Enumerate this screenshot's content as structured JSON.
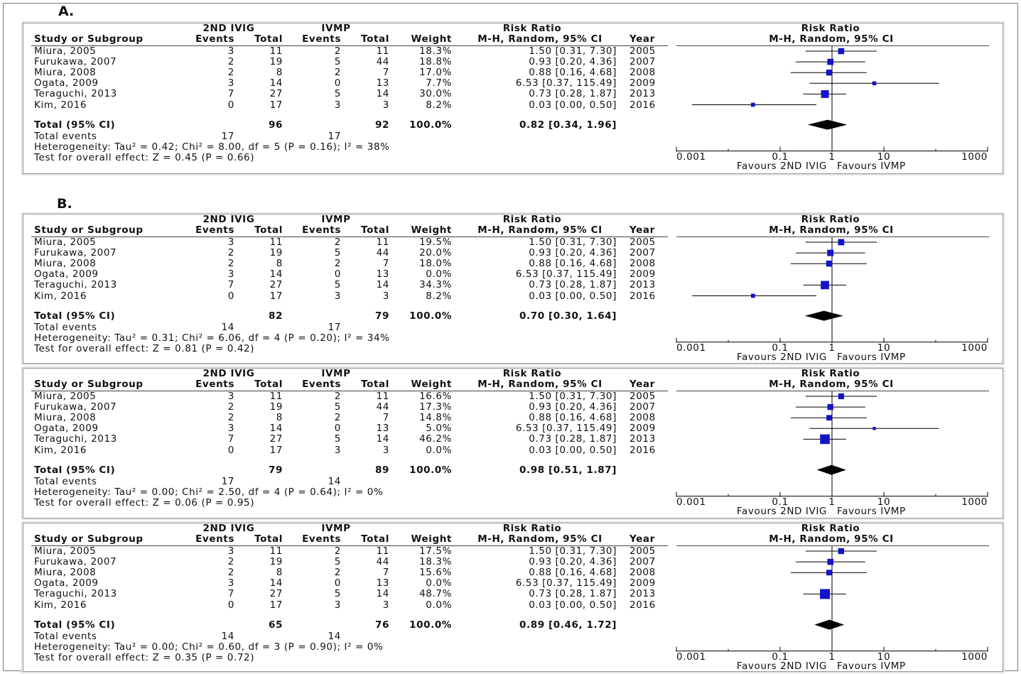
{
  "panel_labels": [
    "A.",
    "B."
  ],
  "header": {
    "group1": "2ND IVIG",
    "group2": "IVMP",
    "rr_title": "Risk Ratio",
    "rr_method": "M-H, Random, 95% CI",
    "col_study": "Study or Subgroup",
    "col_events1": "Events",
    "col_total1": "Total",
    "col_events2": "Events",
    "col_total2": "Total",
    "col_weight": "Weight",
    "col_year": "Year",
    "plot_title": "Risk Ratio",
    "plot_method": "M-H, Random, 95% CI"
  },
  "total_label": "Total (95% CI)",
  "total_events_label": "Total events",
  "favours_left": "Favours 2ND IVIG",
  "favours_right": "Favours IVMP",
  "chart_data": [
    {
      "type": "forest",
      "x_scale": "log",
      "x_ticks": [
        "0.001",
        "0.1",
        "1",
        "10",
        "1000"
      ],
      "x_tick_values": [
        0.001,
        0.1,
        1,
        10,
        1000
      ],
      "studies": [
        {
          "name": "Miura, 2005",
          "e1": "3",
          "n1": "11",
          "e2": "2",
          "n2": "11",
          "weight": "18.3%",
          "ci_text": "1.50 [0.31, 7.30]",
          "year": "2005",
          "rr": 1.5,
          "lo": 0.31,
          "hi": 7.3
        },
        {
          "name": "Furukawa, 2007",
          "e1": "2",
          "n1": "19",
          "e2": "5",
          "n2": "44",
          "weight": "18.8%",
          "ci_text": "0.93 [0.20, 4.36]",
          "year": "2007",
          "rr": 0.93,
          "lo": 0.2,
          "hi": 4.36
        },
        {
          "name": "Miura, 2008",
          "e1": "2",
          "n1": "8",
          "e2": "2",
          "n2": "7",
          "weight": "17.0%",
          "ci_text": "0.88 [0.16, 4.68]",
          "year": "2008",
          "rr": 0.88,
          "lo": 0.16,
          "hi": 4.68
        },
        {
          "name": "Ogata, 2009",
          "e1": "3",
          "n1": "14",
          "e2": "0",
          "n2": "13",
          "weight": "7.7%",
          "ci_text": "6.53 [0.37, 115.49]",
          "year": "2009",
          "rr": 6.53,
          "lo": 0.37,
          "hi": 115.49
        },
        {
          "name": "Teraguchi, 2013",
          "e1": "7",
          "n1": "27",
          "e2": "5",
          "n2": "14",
          "weight": "30.0%",
          "ci_text": "0.73 [0.28, 1.87]",
          "year": "2013",
          "rr": 0.73,
          "lo": 0.28,
          "hi": 1.87
        },
        {
          "name": "Kim, 2016",
          "e1": "0",
          "n1": "17",
          "e2": "3",
          "n2": "3",
          "weight": "8.2%",
          "ci_text": "0.03 [0.00, 0.50]",
          "year": "2016",
          "rr": 0.03,
          "lo": 0.002,
          "hi": 0.5
        }
      ],
      "total": {
        "n1": "96",
        "n2": "92",
        "weight": "100.0%",
        "ci_text": "0.82 [0.34, 1.96]",
        "rr": 0.82,
        "lo": 0.34,
        "hi": 1.96
      },
      "total_events": {
        "e1": "17",
        "e2": "17"
      },
      "heterogeneity": "Heterogeneity: Tau² = 0.42; Chi² = 8.00, df = 5 (P = 0.16); I² = 38%",
      "overall_effect": "Test for overall effect: Z = 0.45 (P = 0.66)"
    },
    {
      "type": "forest",
      "x_scale": "log",
      "x_ticks": [
        "0.001",
        "0.1",
        "1",
        "10",
        "1000"
      ],
      "x_tick_values": [
        0.001,
        0.1,
        1,
        10,
        1000
      ],
      "studies": [
        {
          "name": "Miura, 2005",
          "e1": "3",
          "n1": "11",
          "e2": "2",
          "n2": "11",
          "weight": "19.5%",
          "ci_text": "1.50 [0.31, 7.30]",
          "year": "2005",
          "rr": 1.5,
          "lo": 0.31,
          "hi": 7.3
        },
        {
          "name": "Furukawa, 2007",
          "e1": "2",
          "n1": "19",
          "e2": "5",
          "n2": "44",
          "weight": "20.0%",
          "ci_text": "0.93 [0.20, 4.36]",
          "year": "2007",
          "rr": 0.93,
          "lo": 0.2,
          "hi": 4.36
        },
        {
          "name": "Miura, 2008",
          "e1": "2",
          "n1": "8",
          "e2": "2",
          "n2": "7",
          "weight": "18.0%",
          "ci_text": "0.88 [0.16, 4.68]",
          "year": "2008",
          "rr": 0.88,
          "lo": 0.16,
          "hi": 4.68
        },
        {
          "name": "Ogata, 2009",
          "e1": "3",
          "n1": "14",
          "e2": "0",
          "n2": "13",
          "weight": "0.0%",
          "ci_text": "6.53 [0.37, 115.49]",
          "year": "2009",
          "rr": null,
          "lo": null,
          "hi": null
        },
        {
          "name": "Teraguchi, 2013",
          "e1": "7",
          "n1": "27",
          "e2": "5",
          "n2": "14",
          "weight": "34.3%",
          "ci_text": "0.73 [0.28, 1.87]",
          "year": "2013",
          "rr": 0.73,
          "lo": 0.28,
          "hi": 1.87
        },
        {
          "name": "Kim, 2016",
          "e1": "0",
          "n1": "17",
          "e2": "3",
          "n2": "3",
          "weight": "8.2%",
          "ci_text": "0.03 [0.00, 0.50]",
          "year": "2016",
          "rr": 0.03,
          "lo": 0.002,
          "hi": 0.5
        }
      ],
      "total": {
        "n1": "82",
        "n2": "79",
        "weight": "100.0%",
        "ci_text": "0.70 [0.30, 1.64]",
        "rr": 0.7,
        "lo": 0.3,
        "hi": 1.64
      },
      "total_events": {
        "e1": "14",
        "e2": "17"
      },
      "heterogeneity": "Heterogeneity: Tau² = 0.31; Chi² = 6.06, df = 4 (P = 0.20); I² = 34%",
      "overall_effect": "Test for overall effect: Z = 0.81 (P = 0.42)"
    },
    {
      "type": "forest",
      "x_scale": "log",
      "x_ticks": [
        "0.001",
        "0.1",
        "1",
        "10",
        "1000"
      ],
      "x_tick_values": [
        0.001,
        0.1,
        1,
        10,
        1000
      ],
      "studies": [
        {
          "name": "Miura, 2005",
          "e1": "3",
          "n1": "11",
          "e2": "2",
          "n2": "11",
          "weight": "16.6%",
          "ci_text": "1.50 [0.31, 7.30]",
          "year": "2005",
          "rr": 1.5,
          "lo": 0.31,
          "hi": 7.3
        },
        {
          "name": "Furukawa, 2007",
          "e1": "2",
          "n1": "19",
          "e2": "5",
          "n2": "44",
          "weight": "17.3%",
          "ci_text": "0.93 [0.20, 4.36]",
          "year": "2007",
          "rr": 0.93,
          "lo": 0.2,
          "hi": 4.36
        },
        {
          "name": "Miura, 2008",
          "e1": "2",
          "n1": "8",
          "e2": "2",
          "n2": "7",
          "weight": "14.8%",
          "ci_text": "0.88 [0.16, 4.68]",
          "year": "2008",
          "rr": 0.88,
          "lo": 0.16,
          "hi": 4.68
        },
        {
          "name": "Ogata, 2009",
          "e1": "3",
          "n1": "14",
          "e2": "0",
          "n2": "13",
          "weight": "5.0%",
          "ci_text": "6.53 [0.37, 115.49]",
          "year": "2009",
          "rr": 6.53,
          "lo": 0.37,
          "hi": 115.49
        },
        {
          "name": "Teraguchi, 2013",
          "e1": "7",
          "n1": "27",
          "e2": "5",
          "n2": "14",
          "weight": "46.2%",
          "ci_text": "0.73 [0.28, 1.87]",
          "year": "2013",
          "rr": 0.73,
          "lo": 0.28,
          "hi": 1.87
        },
        {
          "name": "Kim, 2016",
          "e1": "0",
          "n1": "17",
          "e2": "3",
          "n2": "3",
          "weight": "0.0%",
          "ci_text": "0.03 [0.00, 0.50]",
          "year": "2016",
          "rr": null,
          "lo": null,
          "hi": null
        }
      ],
      "total": {
        "n1": "79",
        "n2": "89",
        "weight": "100.0%",
        "ci_text": "0.98 [0.51, 1.87]",
        "rr": 0.98,
        "lo": 0.51,
        "hi": 1.87
      },
      "total_events": {
        "e1": "17",
        "e2": "14"
      },
      "heterogeneity": "Heterogeneity: Tau² = 0.00; Chi² = 2.50, df = 4 (P = 0.64); I² = 0%",
      "overall_effect": "Test for overall effect: Z = 0.06 (P = 0.95)"
    },
    {
      "type": "forest",
      "x_scale": "log",
      "x_ticks": [
        "0.001",
        "0.1",
        "1",
        "10",
        "1000"
      ],
      "x_tick_values": [
        0.001,
        0.1,
        1,
        10,
        1000
      ],
      "studies": [
        {
          "name": "Miura, 2005",
          "e1": "3",
          "n1": "11",
          "e2": "2",
          "n2": "11",
          "weight": "17.5%",
          "ci_text": "1.50 [0.31, 7.30]",
          "year": "2005",
          "rr": 1.5,
          "lo": 0.31,
          "hi": 7.3
        },
        {
          "name": "Furukawa, 2007",
          "e1": "2",
          "n1": "19",
          "e2": "5",
          "n2": "44",
          "weight": "18.3%",
          "ci_text": "0.93 [0.20, 4.36]",
          "year": "2007",
          "rr": 0.93,
          "lo": 0.2,
          "hi": 4.36
        },
        {
          "name": "Miura, 2008",
          "e1": "2",
          "n1": "8",
          "e2": "2",
          "n2": "7",
          "weight": "15.6%",
          "ci_text": "0.88 [0.16, 4.68]",
          "year": "2008",
          "rr": 0.88,
          "lo": 0.16,
          "hi": 4.68
        },
        {
          "name": "Ogata, 2009",
          "e1": "3",
          "n1": "14",
          "e2": "0",
          "n2": "13",
          "weight": "0.0%",
          "ci_text": "6.53 [0.37, 115.49]",
          "year": "2009",
          "rr": null,
          "lo": null,
          "hi": null
        },
        {
          "name": "Teraguchi, 2013",
          "e1": "7",
          "n1": "27",
          "e2": "5",
          "n2": "14",
          "weight": "48.7%",
          "ci_text": "0.73 [0.28, 1.87]",
          "year": "2013",
          "rr": 0.73,
          "lo": 0.28,
          "hi": 1.87
        },
        {
          "name": "Kim, 2016",
          "e1": "0",
          "n1": "17",
          "e2": "3",
          "n2": "3",
          "weight": "0.0%",
          "ci_text": "0.03 [0.00, 0.50]",
          "year": "2016",
          "rr": null,
          "lo": null,
          "hi": null
        }
      ],
      "total": {
        "n1": "65",
        "n2": "76",
        "weight": "100.0%",
        "ci_text": "0.89 [0.46, 1.72]",
        "rr": 0.89,
        "lo": 0.46,
        "hi": 1.72
      },
      "total_events": {
        "e1": "14",
        "e2": "14"
      },
      "heterogeneity": "Heterogeneity: Tau² = 0.00; Chi² = 0.60, df = 3 (P = 0.90); I² = 0%",
      "overall_effect": "Test for overall effect: Z = 0.35 (P = 0.72)"
    }
  ],
  "colors": {
    "marker": "#1414c8",
    "diamond": "#000000",
    "line": "#000000"
  }
}
